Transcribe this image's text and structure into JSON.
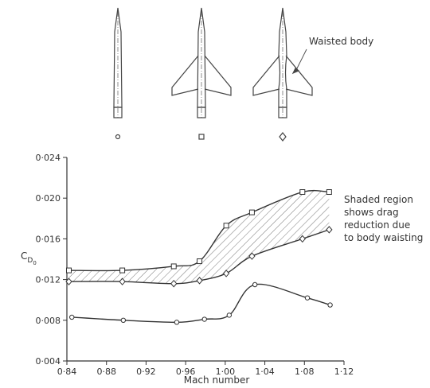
{
  "chart_data": {
    "type": "line",
    "x_label": "Mach number",
    "y_label": [
      "C",
      "D",
      "0"
    ],
    "annotation_lines": [
      "Shaded region",
      "shows drag",
      "reduction due",
      "to body waisting"
    ],
    "callout": "Waisted body",
    "shaded_between": [
      0,
      1
    ],
    "xlim": [
      0.84,
      1.12
    ],
    "xticks": [
      {
        "value": 0.84,
        "label": "0·84"
      },
      {
        "value": 0.88,
        "label": "0·88"
      },
      {
        "value": 0.92,
        "label": "0·92"
      },
      {
        "value": 0.96,
        "label": "0·96"
      },
      {
        "value": 1.0,
        "label": "1·00"
      },
      {
        "value": 1.04,
        "label": "1·04"
      },
      {
        "value": 1.08,
        "label": "1·08"
      },
      {
        "value": 1.12,
        "label": "1·12"
      }
    ],
    "ylim": [
      0.004,
      0.024
    ],
    "yticks": [
      {
        "value": 0.004,
        "label": "0·004"
      },
      {
        "value": 0.008,
        "label": "0·008"
      },
      {
        "value": 0.012,
        "label": "0·012"
      },
      {
        "value": 0.016,
        "label": "0·016"
      },
      {
        "value": 0.02,
        "label": "0·020"
      },
      {
        "value": 0.024,
        "label": "0·024"
      }
    ],
    "series": [
      {
        "marker": "square",
        "color": "#333333",
        "x": [
          0.842,
          0.896,
          0.948,
          0.974,
          1.001,
          1.027,
          1.078,
          1.105
        ],
        "values": [
          0.0129,
          0.0129,
          0.0133,
          0.0138,
          0.0173,
          0.0186,
          0.0206,
          0.0206
        ]
      },
      {
        "marker": "diamond",
        "color": "#333333",
        "x": [
          0.842,
          0.896,
          0.948,
          0.974,
          1.001,
          1.027,
          1.078,
          1.105
        ],
        "values": [
          0.0118,
          0.0118,
          0.0116,
          0.0119,
          0.0126,
          0.0143,
          0.016,
          0.0169
        ]
      },
      {
        "marker": "circle",
        "color": "#333333",
        "x": [
          0.845,
          0.897,
          0.951,
          0.979,
          1.004,
          1.03,
          1.083,
          1.106
        ],
        "values": [
          0.0083,
          0.008,
          0.0078,
          0.0081,
          0.0085,
          0.0115,
          0.0102,
          0.0095
        ]
      }
    ]
  }
}
